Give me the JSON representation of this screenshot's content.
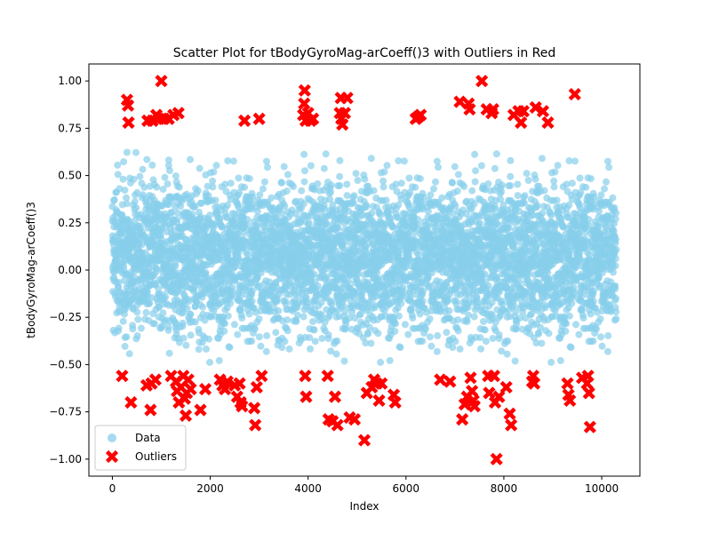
{
  "chart_data": {
    "type": "scatter",
    "title": "Scatter Plot for tBodyGyroMag-arCoeff()3 with Outliers in Red",
    "xlabel": "Index",
    "ylabel": "tBodyGyroMag-arCoeff()3",
    "xlim": [
      -480,
      10780
    ],
    "ylim": [
      -1.09,
      1.09
    ],
    "x_ticks": [
      0,
      2000,
      4000,
      6000,
      8000,
      10000
    ],
    "y_ticks": [
      -1.0,
      -0.75,
      -0.5,
      -0.25,
      0.0,
      0.25,
      0.5,
      0.75,
      1.0
    ],
    "x_tick_labels": [
      "0",
      "2000",
      "4000",
      "6000",
      "8000",
      "10000"
    ],
    "y_tick_labels": [
      "−1.00",
      "−0.75",
      "−0.50",
      "−0.25",
      "0.00",
      "0.25",
      "0.50",
      "0.75",
      "1.00"
    ],
    "grid": false,
    "legend_position": "lower-left",
    "data_series": {
      "name": "Data",
      "color": "#87CEEB",
      "marker": "circle",
      "n_points": 10299,
      "center": 0.07,
      "spread": 0.2,
      "range": [
        -0.5,
        0.75
      ]
    },
    "series": [
      {
        "name": "Outliers",
        "color": "#FF0000",
        "marker": "x",
        "points": [
          [
            200,
            -0.56
          ],
          [
            300,
            0.9
          ],
          [
            320,
            0.87
          ],
          [
            330,
            0.78
          ],
          [
            380,
            -0.7
          ],
          [
            700,
            -0.61
          ],
          [
            720,
            0.79
          ],
          [
            780,
            -0.74
          ],
          [
            800,
            -0.6
          ],
          [
            820,
            0.79
          ],
          [
            880,
            -0.58
          ],
          [
            900,
            0.82
          ],
          [
            950,
            0.8
          ],
          [
            1000,
            1.0
          ],
          [
            1050,
            0.8
          ],
          [
            1150,
            0.8
          ],
          [
            1200,
            -0.56
          ],
          [
            1250,
            0.82
          ],
          [
            1300,
            -0.59
          ],
          [
            1320,
            -0.64
          ],
          [
            1350,
            0.83
          ],
          [
            1360,
            -0.7
          ],
          [
            1400,
            -0.62
          ],
          [
            1450,
            -0.56
          ],
          [
            1480,
            -0.68
          ],
          [
            1500,
            -0.77
          ],
          [
            1520,
            -0.65
          ],
          [
            1550,
            -0.58
          ],
          [
            1600,
            -0.63
          ],
          [
            1800,
            -0.74
          ],
          [
            1900,
            -0.63
          ],
          [
            2200,
            -0.58
          ],
          [
            2250,
            -0.61
          ],
          [
            2300,
            -0.63
          ],
          [
            2350,
            -0.59
          ],
          [
            2500,
            -0.61
          ],
          [
            2550,
            -0.67
          ],
          [
            2600,
            -0.6
          ],
          [
            2620,
            -0.7
          ],
          [
            2650,
            -0.72
          ],
          [
            2700,
            0.79
          ],
          [
            2900,
            -0.73
          ],
          [
            2920,
            -0.82
          ],
          [
            2950,
            -0.62
          ],
          [
            3000,
            0.8
          ],
          [
            3050,
            -0.56
          ],
          [
            3900,
            0.82
          ],
          [
            3920,
            0.88
          ],
          [
            3930,
            0.95
          ],
          [
            3940,
            -0.56
          ],
          [
            3950,
            0.79
          ],
          [
            3960,
            -0.67
          ],
          [
            4000,
            0.83
          ],
          [
            4050,
            0.79
          ],
          [
            4100,
            0.8
          ],
          [
            4400,
            -0.56
          ],
          [
            4420,
            -0.79
          ],
          [
            4500,
            -0.8
          ],
          [
            4550,
            -0.67
          ],
          [
            4600,
            -0.82
          ],
          [
            4650,
            0.83
          ],
          [
            4670,
            0.91
          ],
          [
            4680,
            0.8
          ],
          [
            4700,
            0.77
          ],
          [
            4750,
            0.83
          ],
          [
            4800,
            0.91
          ],
          [
            4850,
            -0.78
          ],
          [
            4950,
            -0.79
          ],
          [
            5150,
            -0.9
          ],
          [
            5200,
            -0.65
          ],
          [
            5300,
            -0.62
          ],
          [
            5350,
            -0.58
          ],
          [
            5400,
            -0.6
          ],
          [
            5450,
            -0.69
          ],
          [
            5500,
            -0.6
          ],
          [
            5750,
            -0.66
          ],
          [
            5780,
            -0.7
          ],
          [
            6200,
            0.8
          ],
          [
            6250,
            0.81
          ],
          [
            6300,
            0.82
          ],
          [
            6700,
            -0.58
          ],
          [
            6900,
            -0.59
          ],
          [
            7100,
            0.89
          ],
          [
            7150,
            -0.79
          ],
          [
            7200,
            -0.71
          ],
          [
            7250,
            -0.67
          ],
          [
            7280,
            0.88
          ],
          [
            7300,
            0.85
          ],
          [
            7320,
            -0.57
          ],
          [
            7350,
            -0.64
          ],
          [
            7380,
            -0.69
          ],
          [
            7400,
            -0.72
          ],
          [
            7550,
            1.0
          ],
          [
            7650,
            0.85
          ],
          [
            7680,
            -0.56
          ],
          [
            7700,
            -0.65
          ],
          [
            7750,
            0.83
          ],
          [
            7780,
            0.85
          ],
          [
            7800,
            -0.56
          ],
          [
            7820,
            -0.7
          ],
          [
            7850,
            -1.0
          ],
          [
            7900,
            -0.67
          ],
          [
            8050,
            -0.62
          ],
          [
            8120,
            -0.76
          ],
          [
            8150,
            -0.82
          ],
          [
            8200,
            0.82
          ],
          [
            8300,
            0.84
          ],
          [
            8350,
            0.78
          ],
          [
            8400,
            0.84
          ],
          [
            8580,
            -0.59
          ],
          [
            8600,
            -0.56
          ],
          [
            8620,
            -0.6
          ],
          [
            8650,
            0.86
          ],
          [
            8800,
            0.84
          ],
          [
            8900,
            0.78
          ],
          [
            9300,
            -0.6
          ],
          [
            9320,
            -0.66
          ],
          [
            9350,
            -0.69
          ],
          [
            9450,
            0.93
          ],
          [
            9600,
            -0.57
          ],
          [
            9700,
            -0.6
          ],
          [
            9720,
            -0.56
          ],
          [
            9740,
            -0.65
          ],
          [
            9760,
            -0.83
          ]
        ]
      }
    ]
  }
}
